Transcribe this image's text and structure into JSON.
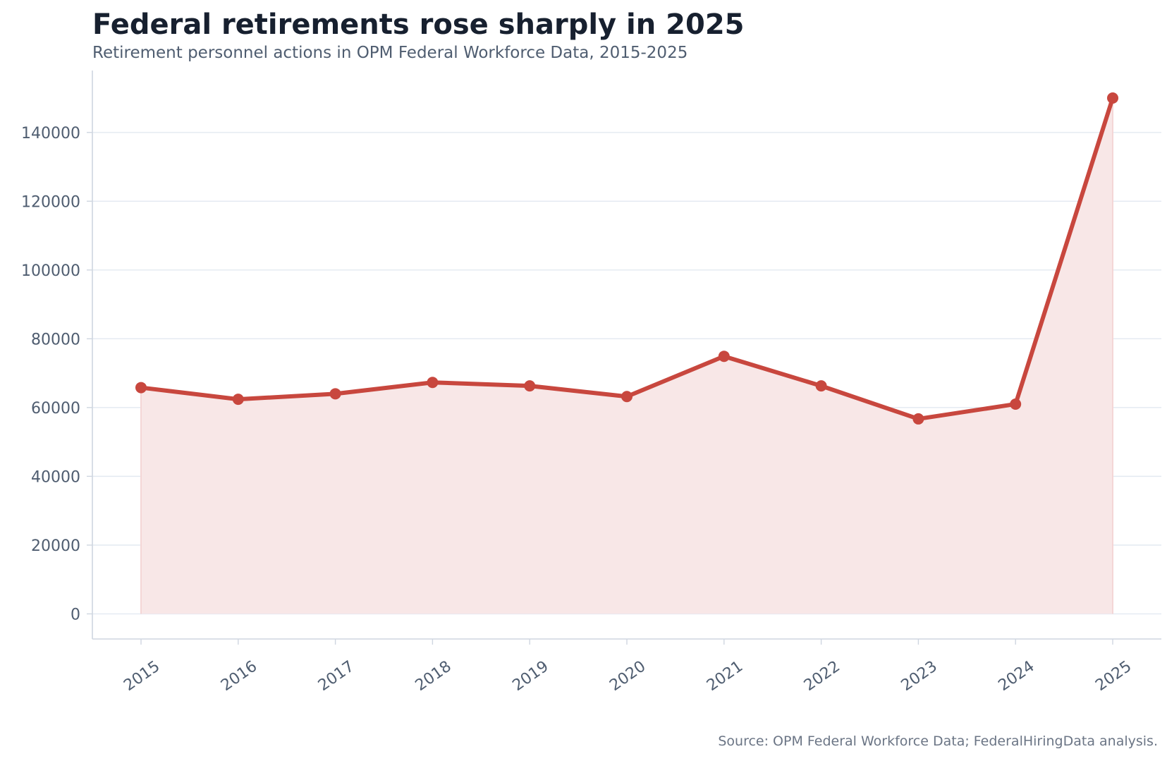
{
  "chart_data": {
    "type": "line",
    "title": "Federal retirements rose sharply in 2025",
    "subtitle": "Retirement personnel actions in OPM Federal Workforce Data, 2015-2025",
    "source": "Source: OPM Federal Workforce Data; FederalHiringData analysis.",
    "xlabel": "",
    "ylabel": "",
    "x": [
      "2015",
      "2016",
      "2017",
      "2018",
      "2019",
      "2020",
      "2021",
      "2022",
      "2023",
      "2024",
      "2025"
    ],
    "series": [
      {
        "values": [
          65800,
          62400,
          64000,
          67300,
          66300,
          63200,
          74900,
          66300,
          56700,
          61000,
          150000
        ]
      }
    ],
    "ylim": [
      -7300,
      158000
    ],
    "yticks": [
      0,
      20000,
      40000,
      60000,
      80000,
      100000,
      120000,
      140000
    ],
    "grid": "horizontal",
    "fill_area": true,
    "colors": {
      "line": "#c8473e",
      "fill": "#f8e7e7",
      "grid": "#e3e9f1",
      "axis": "#cfd6e0"
    }
  }
}
